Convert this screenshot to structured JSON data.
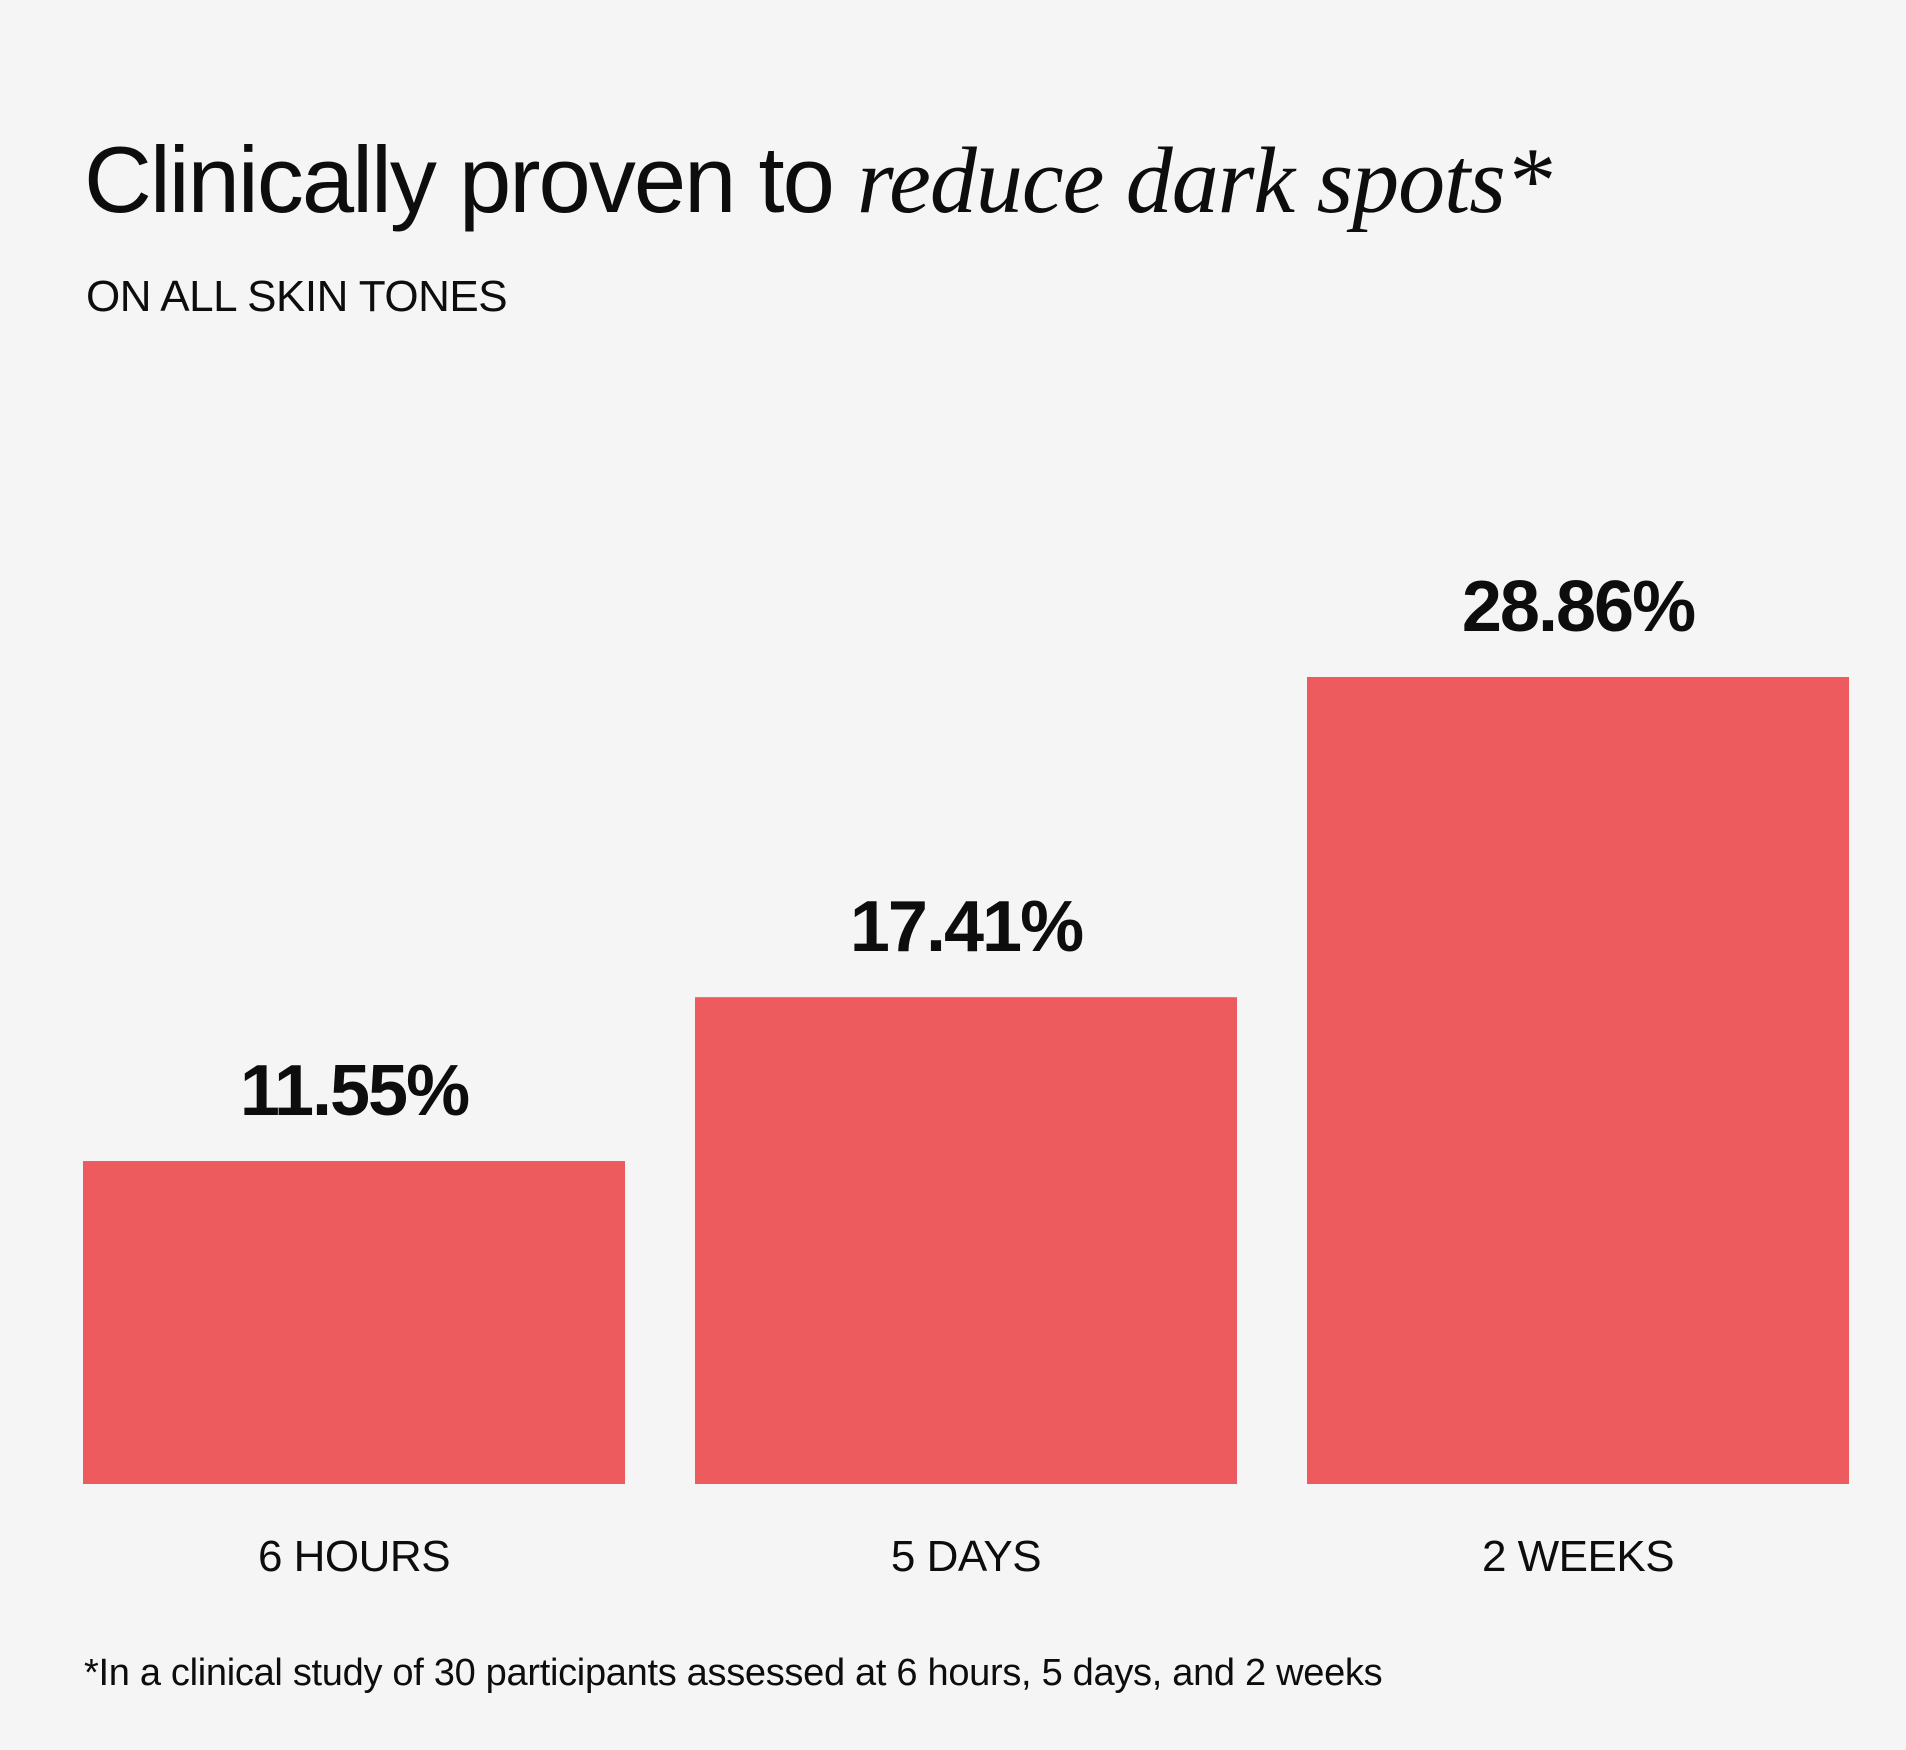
{
  "title": {
    "lead": "Clinically proven to",
    "emphasis": "reduce dark spots*"
  },
  "subtitle": "ON ALL SKIN TONES",
  "footnote": "*In a clinical study of 30 participants assessed at 6 hours, 5 days, and 2 weeks",
  "colors": {
    "background": "#f5f5f5",
    "bar": "#ee5b5e",
    "text": "#0d0d0d"
  },
  "chart_data": {
    "type": "bar",
    "title": "Clinically proven to reduce dark spots*",
    "subtitle": "ON ALL SKIN TONES",
    "categories": [
      "6 HOURS",
      "5 DAYS",
      "2 WEEKS"
    ],
    "values": [
      11.55,
      17.41,
      28.86
    ],
    "value_labels": [
      "11.55%",
      "17.41%",
      "28.86%"
    ],
    "unit": "%",
    "xlabel": "",
    "ylabel": "",
    "ylim": [
      0,
      28.86
    ],
    "grid": false,
    "legend": "none"
  }
}
